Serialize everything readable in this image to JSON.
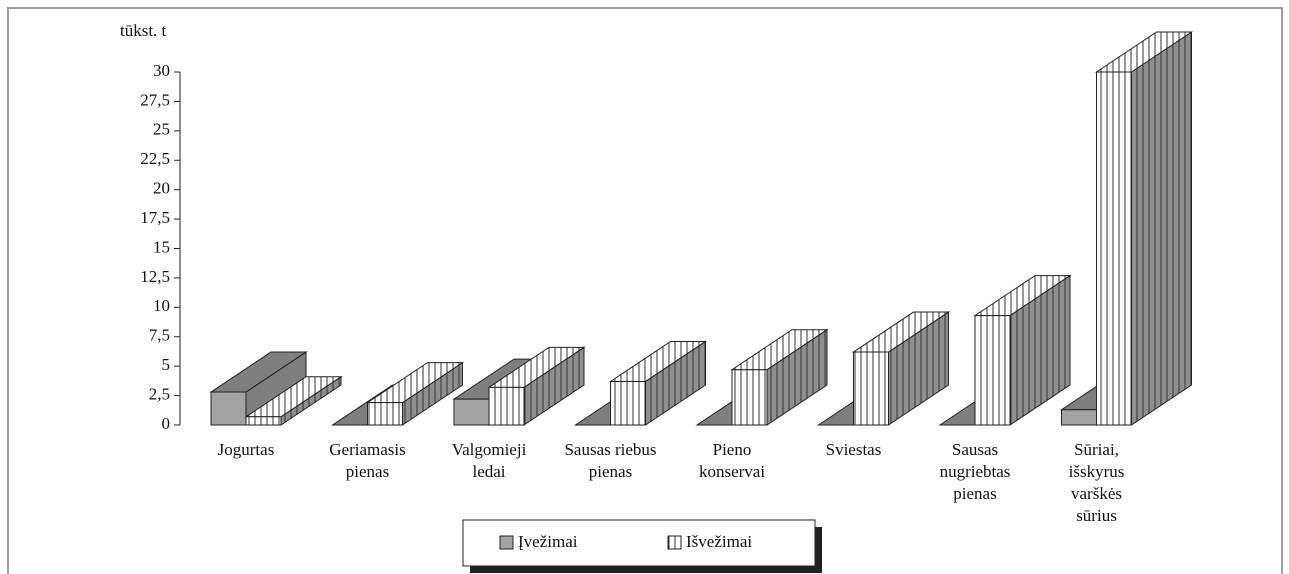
{
  "chart_data": {
    "type": "bar3d",
    "ylabel": "tūkst. t",
    "categories": [
      "Jogurtas",
      "Geriamasis\npienas",
      "Valgomieji\nledai",
      "Sausas riebus\npienas",
      "Pieno\nkonservai",
      "Sviestas",
      "Sausas\nnugriebtas\npienas",
      "Sūriai,\nišskyrus\nvarškės\nsūrius"
    ],
    "series": [
      {
        "name": "Įvežimai",
        "color": "#a3a3a3",
        "values": [
          2.8,
          0,
          2.2,
          0,
          0,
          0,
          0,
          1.3
        ]
      },
      {
        "name": "Išvežimai",
        "color": "#ffffff",
        "values": [
          0.7,
          1.9,
          3.2,
          3.7,
          4.7,
          6.2,
          9.3,
          30
        ]
      }
    ],
    "ylim": [
      0,
      30
    ],
    "yticks": [
      0,
      {
        "value": 2.5,
        "label": "2,5"
      },
      5,
      {
        "value": 7.5,
        "label": "7,5"
      },
      10,
      {
        "value": 12.5,
        "label": "12,5"
      },
      15,
      {
        "value": 17.5,
        "label": "17,5"
      },
      20,
      {
        "value": 22.5,
        "label": "22,5"
      },
      25,
      {
        "value": 27.5,
        "label": "27,5"
      },
      30
    ]
  }
}
